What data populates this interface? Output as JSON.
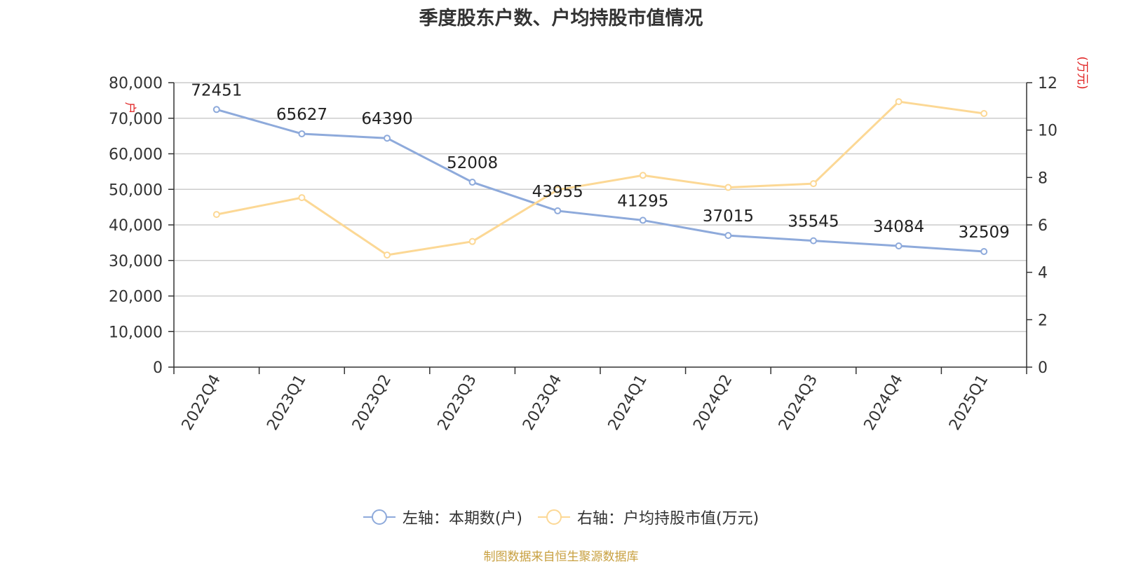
{
  "title": "季度股东户数、户均持股市值情况",
  "source": "制图数据来自恒生聚源数据库",
  "chart_data": {
    "type": "line",
    "categories": [
      "2022Q4",
      "2023Q1",
      "2023Q2",
      "2023Q3",
      "2023Q4",
      "2024Q1",
      "2024Q2",
      "2024Q3",
      "2024Q4",
      "2025Q1"
    ],
    "left_axis": {
      "unit_label": "户",
      "ylim": [
        0,
        80000
      ],
      "ticks": [
        "0",
        "10,000",
        "20,000",
        "30,000",
        "40,000",
        "50,000",
        "60,000",
        "70,000",
        "80,000"
      ]
    },
    "right_axis": {
      "unit_label": "(万元)",
      "ylim": [
        0,
        12
      ],
      "ticks": [
        "0",
        "2",
        "4",
        "6",
        "8",
        "10",
        "12"
      ]
    },
    "series": [
      {
        "name": "左轴：本期数(户)",
        "axis": "left",
        "color": "#8eaadb",
        "values": [
          72451,
          65627,
          64390,
          52008,
          43955,
          41295,
          37015,
          35545,
          34084,
          32509
        ],
        "labels": [
          "72451",
          "65627",
          "64390",
          "52008",
          "43955",
          "41295",
          "37015",
          "35545",
          "34084",
          "32509"
        ]
      },
      {
        "name": "右轴：户均持股市值(万元)",
        "axis": "right",
        "color": "#fcd895",
        "values": [
          6.44,
          7.15,
          4.73,
          5.3,
          7.48,
          8.09,
          7.58,
          7.74,
          11.2,
          10.7
        ]
      }
    ],
    "grid": true,
    "legend_position": "bottom"
  }
}
